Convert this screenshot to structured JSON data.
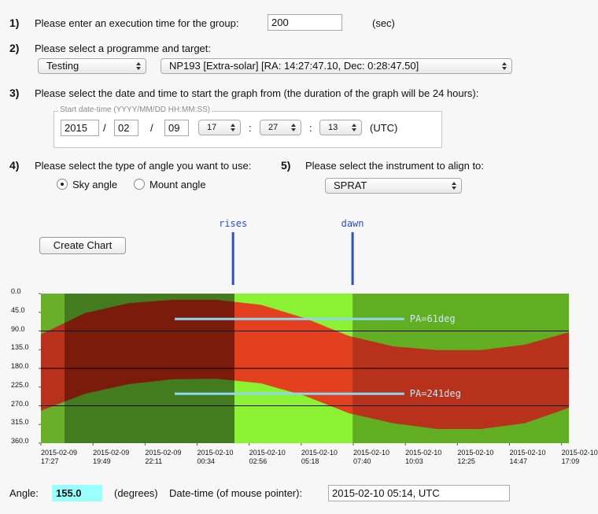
{
  "steps": [
    {
      "number": "1)",
      "text": "Please enter an execution time for the group:"
    },
    {
      "number": "2)",
      "text": "Please select a programme and target:"
    },
    {
      "number": "3)",
      "text": "Please select the date and time to start the graph from (the duration of the graph will be 24 hours):"
    },
    {
      "number": "4)",
      "text": "Please select the type of angle you want to use:"
    },
    {
      "number": "5)",
      "text": "Please select the instrument to align to:"
    }
  ],
  "execution_time": {
    "value": "200",
    "unit": "(sec)"
  },
  "programme": "Testing",
  "target": "NP193 [Extra-solar] [RA:  14:27:47.10, Dec:  0:28:47.50]",
  "start_datetime": {
    "legend": "Start date-time (YYYY/MM/DD HH:MM:SS)",
    "year": "2015",
    "date_sep": "/",
    "month": "02",
    "day": "09",
    "hour": "17",
    "time_sep": ":",
    "minute": "27",
    "second": "13",
    "zone": "(UTC)"
  },
  "angle_options": [
    {
      "label": "Sky angle",
      "checked": true
    },
    {
      "label": "Mount angle",
      "checked": false
    }
  ],
  "instrument": "SPRAT",
  "button": "Create Chart",
  "chart_data": {
    "type": "band",
    "xlim": [
      0,
      1440
    ],
    "xticks": [
      {
        "value": 0,
        "label": "2015-02-09\n17:27"
      },
      {
        "value": 142,
        "label": "2015-02-09\n19:49"
      },
      {
        "value": 284,
        "label": "2015-02-09\n22:11"
      },
      {
        "value": 426,
        "label": "2015-02-10\n00:34"
      },
      {
        "value": 568,
        "label": "2015-02-10\n02:56"
      },
      {
        "value": 710,
        "label": "2015-02-10\n05:18"
      },
      {
        "value": 852,
        "label": "2015-02-10\n07:40"
      },
      {
        "value": 994,
        "label": "2015-02-10\n10:03"
      },
      {
        "value": 1136,
        "label": "2015-02-10\n12:25"
      },
      {
        "value": 1278,
        "label": "2015-02-10\n14:47"
      },
      {
        "value": 1420,
        "label": "2015-02-10\n17:09"
      }
    ],
    "ylim": [
      0,
      360
    ],
    "invert_y": true,
    "yticks": [
      {
        "value": 0,
        "label": "0.0"
      },
      {
        "value": 45,
        "label": "45.0"
      },
      {
        "value": 90,
        "label": "90.0"
      },
      {
        "value": 135,
        "label": "135.0"
      },
      {
        "value": 180,
        "label": "180.0"
      },
      {
        "value": 225,
        "label": "225.0"
      },
      {
        "value": 270,
        "label": "270.0"
      },
      {
        "value": 315,
        "label": "315.0"
      },
      {
        "value": 360,
        "label": "360.0"
      }
    ],
    "grid_lines": [
      90,
      180,
      270
    ],
    "x": [
      0,
      120,
      240,
      360,
      480,
      600,
      720,
      840,
      960,
      1080,
      1200,
      1320,
      1440
    ],
    "band_top": [
      98,
      47,
      23,
      15,
      15,
      27,
      59,
      102,
      127,
      136,
      136,
      123,
      93
    ],
    "band_bottom": [
      282,
      241,
      218,
      206,
      205,
      216,
      246,
      288,
      312,
      326,
      326,
      312,
      275
    ],
    "zones": [
      {
        "start": 0,
        "end": 64,
        "green": "#68b02a",
        "red": "#b8311a"
      },
      {
        "start": 64,
        "end": 528,
        "green": "#437b1f",
        "red": "#7a1b0b"
      },
      {
        "start": 528,
        "end": 850,
        "green": "#8af233",
        "red": "#e2401e"
      },
      {
        "start": 850,
        "end": 1440,
        "green": "#62ae23",
        "red": "#b8311a"
      }
    ],
    "events": [
      {
        "label": "rises",
        "x": 524
      },
      {
        "label": "dawn",
        "x": 850
      }
    ],
    "event_color": "#2a4fd8",
    "annotations": [
      {
        "label": "PA=61deg",
        "y": 61,
        "x": [
          365,
          991
        ]
      },
      {
        "label": "PA=241deg",
        "y": 241,
        "x": [
          365,
          991
        ]
      }
    ],
    "annotation_color": "#8fd6f0"
  },
  "angle_readout": {
    "label": "Angle:",
    "value": "155.0",
    "unit": "(degrees)"
  },
  "pointer": {
    "label": "Date-time (of mouse pointer):",
    "value": "2015-02-10 05:14, UTC"
  }
}
